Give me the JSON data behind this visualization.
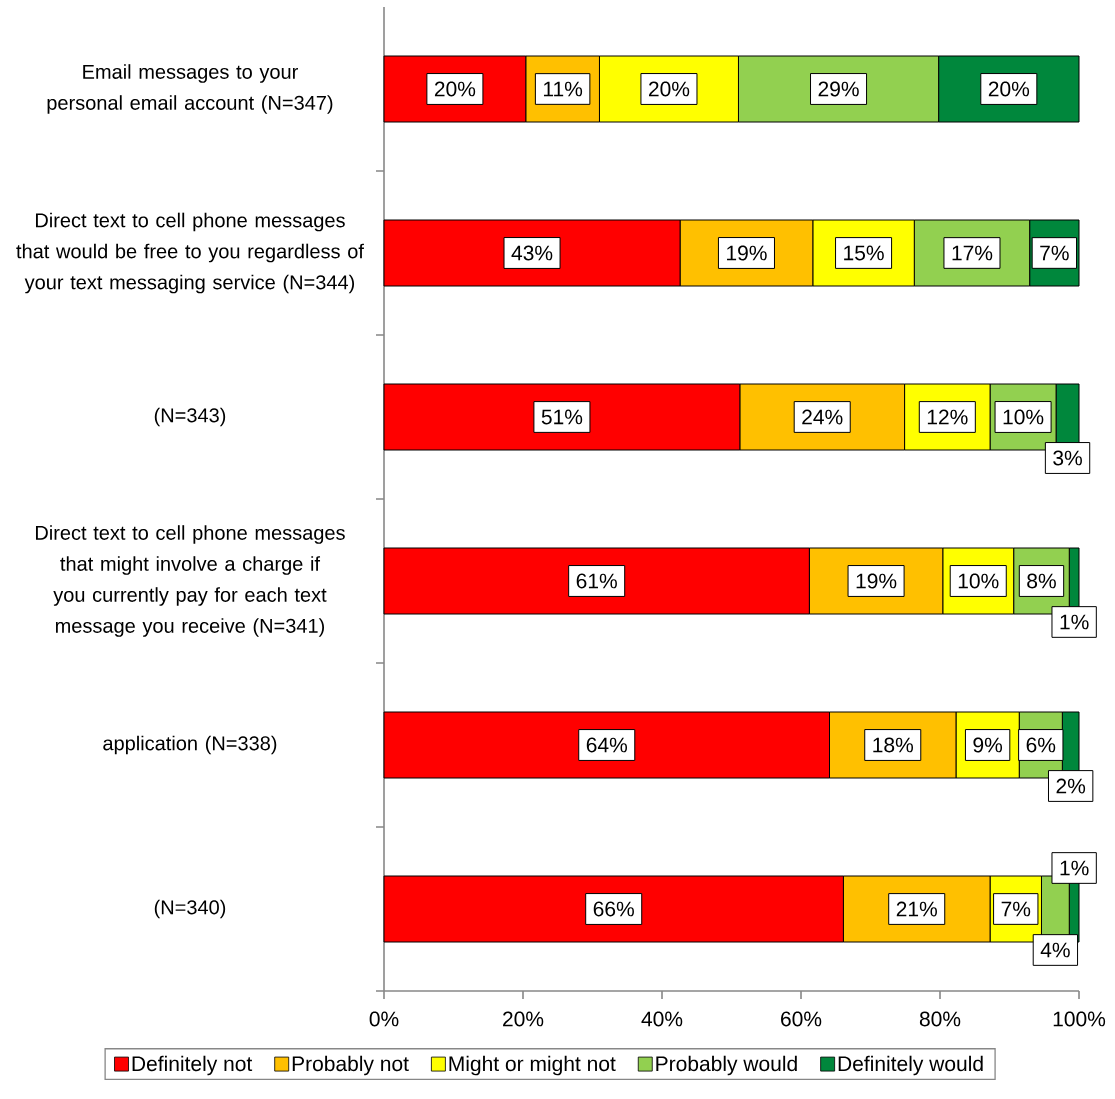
{
  "chart_data": {
    "type": "bar",
    "orientation": "horizontal",
    "stacked": true,
    "categories": [
      "Email messages to your personal email account (N=347)",
      "Direct text to cell phone messages that would be free to you regardless of your text messaging service (N=344)",
      "(N=343)",
      "Direct text to cell phone messages that might involve a charge if you currently pay for each text message you receive (N=341)",
      "application (N=338)",
      "(N=340)"
    ],
    "series": [
      {
        "name": "Definitely not",
        "color": "#ff0000",
        "values": [
          20.4,
          42.6,
          51.2,
          61.2,
          64.1,
          66.1
        ],
        "value_labels": [
          "20%",
          "43%",
          "51%",
          "61%",
          "64%",
          "66%"
        ]
      },
      {
        "name": "Probably not",
        "color": "#ffc000",
        "values": [
          10.6,
          19.1,
          23.7,
          19.2,
          18.2,
          21.1
        ],
        "value_labels": [
          "11%",
          "19%",
          "24%",
          "19%",
          "18%",
          "21%"
        ]
      },
      {
        "name": "Might or might not",
        "color": "#ffff00",
        "values": [
          20.0,
          14.6,
          12.3,
          10.2,
          9.1,
          7.4
        ],
        "value_labels": [
          "20%",
          "15%",
          "12%",
          "10%",
          "9%",
          "7%"
        ]
      },
      {
        "name": "Probably would",
        "color": "#92d050",
        "values": [
          28.8,
          16.6,
          9.5,
          8.0,
          6.2,
          4.0
        ],
        "value_labels": [
          "29%",
          "17%",
          "10%",
          "8%",
          "6%",
          "4%"
        ]
      },
      {
        "name": "Definitely would",
        "color": "#00873c",
        "values": [
          20.2,
          7.1,
          3.3,
          1.4,
          2.4,
          1.4
        ],
        "value_labels": [
          "20%",
          "7%",
          "3%",
          "1%",
          "2%",
          "1%"
        ]
      }
    ],
    "xlim": [
      0,
      100
    ],
    "xticks": [
      {
        "value": 0,
        "label": "0%"
      },
      {
        "value": 20,
        "label": "20%"
      },
      {
        "value": 40,
        "label": "40%"
      },
      {
        "value": 60,
        "label": "60%"
      },
      {
        "value": 80,
        "label": "80%"
      },
      {
        "value": 100,
        "label": "100%"
      }
    ],
    "legend": "bottom"
  }
}
